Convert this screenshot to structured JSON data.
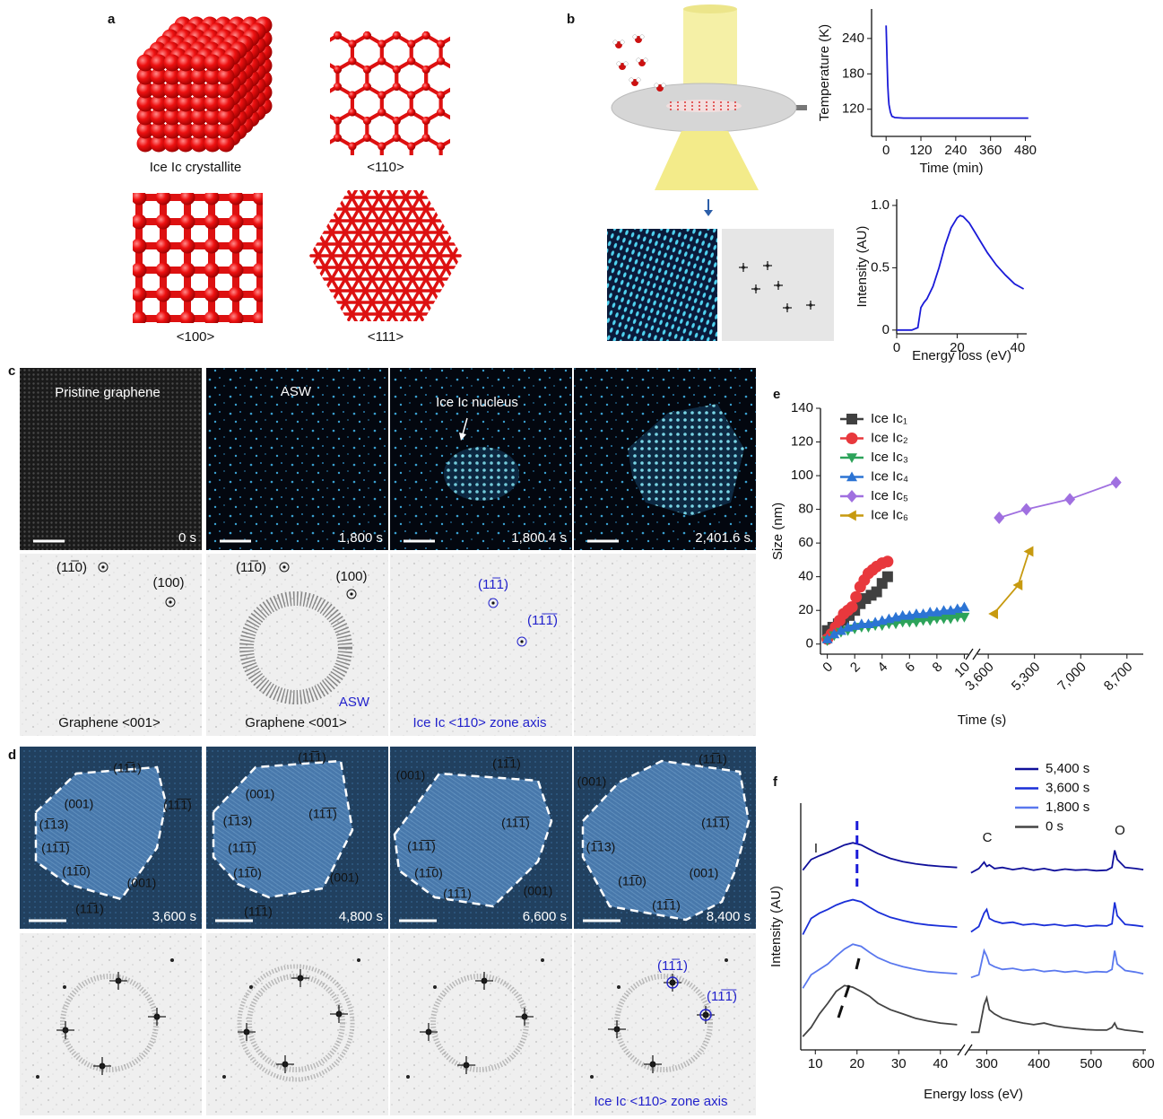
{
  "panels": {
    "a": {
      "label": "a",
      "captions": [
        "Ice Ic crystallite",
        "<110>",
        "<100>",
        "<111>"
      ]
    },
    "b": {
      "label": "b"
    },
    "c": {
      "label": "c",
      "top": [
        {
          "title": "Pristine graphene",
          "time": "0 s"
        },
        {
          "title": "ASW",
          "time": "1,800 s"
        },
        {
          "title": "Ice Ic nucleus",
          "time": "1,800.4 s"
        },
        {
          "time": "2,401.6 s"
        }
      ],
      "bottom": [
        {
          "labels": [
            "(11̅0)",
            "(100)"
          ],
          "caption": "Graphene <001>"
        },
        {
          "labels": [
            "(11̅0)",
            "(100)",
            "ASW"
          ],
          "caption": "Graphene <001>"
        },
        {
          "labels": [
            "(11̅1)",
            "(11̅1̅)"
          ],
          "caption": "Ice Ic <110> zone axis"
        }
      ]
    },
    "d": {
      "label": "d",
      "top": [
        {
          "labels": [
            "(11̅1)",
            "(001)",
            "(11̅1̅)",
            "(1̅13)",
            "(11̅1̅)",
            "(11̅0)",
            "(001)",
            "(11̅1)"
          ],
          "time": "3,600 s"
        },
        {
          "labels": [
            "(11̅1)",
            "(001)",
            "(11̅1̅)",
            "(1̅13)",
            "(11̅1̅)",
            "(11̅0)",
            "(001)",
            "(11̅1)"
          ],
          "time": "4,800 s"
        },
        {
          "labels": [
            "(001)",
            "(11̅1)",
            "(11̅1̅)",
            "(11̅1̅)",
            "(11̅0)",
            "(11̅1)",
            "(001)"
          ],
          "time": "6,600 s"
        },
        {
          "labels": [
            "(001)",
            "(11̅1)",
            "(11̅1̅)",
            "(1̅13)",
            "(11̅0)",
            "(001)",
            "(11̅1)"
          ],
          "time": "8,400 s"
        }
      ],
      "bottom_labels": [
        "(11̅1)",
        "(11̅1̅)"
      ],
      "bottom_caption": "Ice Ic <110> zone axis"
    },
    "e": {
      "label": "e"
    },
    "f": {
      "label": "f"
    }
  },
  "chart_data": [
    {
      "type": "line",
      "xlabel": "Time (min)",
      "ylabel": "Temperature (K)",
      "color": "#1a1ad8",
      "x": [
        0,
        2,
        4,
        6,
        8,
        10,
        15,
        20,
        30,
        60,
        120,
        240,
        360,
        480,
        490
      ],
      "values": [
        262,
        230,
        190,
        160,
        140,
        128,
        115,
        108,
        106,
        105,
        105,
        105,
        105,
        105,
        105
      ],
      "xlim": [
        -50,
        500
      ],
      "ylim": [
        74,
        290
      ],
      "xticks": [
        0,
        120,
        240,
        360,
        480
      ],
      "yticks": [
        120,
        180,
        240
      ]
    },
    {
      "type": "line",
      "xlabel": "Energy loss (eV)",
      "ylabel": "Intensity (AU)",
      "color": "#1a1ad8",
      "x": [
        0,
        5,
        7,
        8,
        9,
        10,
        12,
        14,
        16,
        18,
        20,
        21,
        22,
        24,
        26,
        28,
        30,
        33,
        36,
        39,
        42
      ],
      "values": [
        0,
        0,
        0.02,
        0.18,
        0.22,
        0.25,
        0.35,
        0.5,
        0.68,
        0.82,
        0.9,
        0.92,
        0.91,
        0.86,
        0.78,
        0.7,
        0.62,
        0.52,
        0.44,
        0.37,
        0.33
      ],
      "xlim": [
        0,
        43
      ],
      "ylim": [
        -0.03,
        1.05
      ],
      "xticks": [
        0,
        20,
        40
      ],
      "yticks": [
        0,
        0.5,
        {
          "value": 1,
          "label": "1.0"
        }
      ]
    },
    {
      "type": "line",
      "markers": true,
      "xlabel": "Time (s)",
      "ylabel": "Size (nm)",
      "legend": "top-left",
      "xlim": [
        [
          -0.5,
          10.3
        ],
        [
          3200,
          9300
        ]
      ],
      "ylim": [
        -6,
        140
      ],
      "xticks": [
        0,
        2,
        4,
        6,
        8,
        10,
        {
          "value": 3600,
          "label": "3,600"
        },
        {
          "value": 5300,
          "label": "5,300"
        },
        {
          "value": 7000,
          "label": "7,000"
        },
        {
          "value": 8700,
          "label": "8,700"
        }
      ],
      "yticks": [
        0,
        20,
        40,
        60,
        80,
        100,
        120,
        140
      ],
      "series": [
        {
          "name": "Ice Ic₁",
          "color": "#404040",
          "marker": "square",
          "x": [
            0,
            0.4,
            0.8,
            1.2,
            1.6,
            2,
            2.4,
            2.8,
            3.2,
            3.6,
            4,
            4.4
          ],
          "values": [
            8,
            10,
            12,
            14,
            17,
            20,
            24,
            27,
            29,
            31,
            36,
            40
          ]
        },
        {
          "name": "Ice Ic₂",
          "color": "#e8383d",
          "marker": "circle",
          "x": [
            0,
            0.3,
            0.6,
            0.9,
            1.2,
            1.5,
            1.8,
            2.1,
            2.4,
            2.7,
            3,
            3.3,
            3.6,
            4,
            4.4
          ],
          "values": [
            3,
            6,
            10,
            14,
            18,
            20,
            22,
            28,
            34,
            38,
            42,
            44,
            46,
            48,
            49
          ]
        },
        {
          "name": "Ice Ic₃",
          "color": "#2da35a",
          "marker": "triangle-down",
          "x": [
            0,
            0.5,
            1,
            1.5,
            2,
            2.5,
            3,
            3.5,
            4,
            4.5,
            5,
            5.5,
            6,
            6.5,
            7,
            7.5,
            8,
            8.5,
            9,
            9.5,
            10
          ],
          "values": [
            2,
            5,
            7,
            8,
            9,
            10,
            10,
            11,
            11,
            12,
            12,
            13,
            13,
            13,
            14,
            14,
            15,
            15,
            15,
            16,
            16
          ]
        },
        {
          "name": "Ice Ic₄",
          "color": "#2c74d4",
          "marker": "triangle-up",
          "x": [
            0,
            0.5,
            1,
            1.5,
            2,
            2.5,
            3,
            3.5,
            4,
            4.5,
            5,
            5.5,
            6,
            6.5,
            7,
            7.5,
            8,
            8.5,
            9,
            9.5,
            10
          ],
          "values": [
            3,
            6,
            8,
            10,
            11,
            12,
            12,
            13,
            14,
            15,
            16,
            17,
            17,
            18,
            18,
            19,
            19,
            20,
            20,
            21,
            22
          ]
        },
        {
          "name": "Ice Ic₅",
          "color": "#a070e0",
          "marker": "diamond",
          "x": [
            4000,
            5000,
            6600,
            8300
          ],
          "values": [
            75,
            80,
            86,
            96
          ]
        },
        {
          "name": "Ice Ic₆",
          "color": "#c79a10",
          "marker": "triangle-left",
          "x": [
            3800,
            4700,
            5100
          ],
          "values": [
            18,
            35,
            55
          ]
        }
      ]
    },
    {
      "type": "line",
      "xlabel": "Energy loss (eV)",
      "ylabel": "Intensity (AU)",
      "legend": "top-right",
      "annotations": [
        "I",
        "C",
        "O"
      ],
      "xlim": [
        [
          6.5,
          45
        ],
        [
          265,
          605
        ]
      ],
      "ylim": [
        0,
        4.6
      ],
      "xticks": [
        10,
        20,
        30,
        40,
        300,
        400,
        500,
        600
      ],
      "x": [
        7,
        9,
        11,
        13,
        15,
        17,
        19,
        21,
        23,
        25,
        28,
        31,
        34,
        37,
        40,
        44,
        270,
        285,
        295,
        300,
        305,
        315,
        330,
        350,
        370,
        390,
        410,
        430,
        450,
        470,
        490,
        510,
        530,
        540,
        545,
        550,
        565,
        585,
        600
      ],
      "series": [
        {
          "name": "5,400 s",
          "color": "#10109a",
          "values": [
            3.35,
            3.55,
            3.62,
            3.68,
            3.75,
            3.82,
            3.86,
            3.82,
            3.74,
            3.66,
            3.57,
            3.51,
            3.47,
            3.44,
            3.42,
            3.4,
            3.3,
            3.38,
            3.5,
            3.42,
            3.45,
            3.38,
            3.4,
            3.36,
            3.39,
            3.35,
            3.38,
            3.34,
            3.37,
            3.35,
            3.36,
            3.34,
            3.35,
            3.4,
            3.72,
            3.55,
            3.4,
            3.38,
            3.36
          ]
        },
        {
          "name": "3,600 s",
          "color": "#1a2fd8",
          "values": [
            2.15,
            2.45,
            2.55,
            2.62,
            2.7,
            2.76,
            2.8,
            2.76,
            2.66,
            2.57,
            2.47,
            2.41,
            2.36,
            2.33,
            2.31,
            2.29,
            2.2,
            2.3,
            2.55,
            2.62,
            2.45,
            2.4,
            2.36,
            2.38,
            2.33,
            2.35,
            2.32,
            2.34,
            2.31,
            2.33,
            2.3,
            2.32,
            2.31,
            2.35,
            2.75,
            2.5,
            2.34,
            2.32,
            2.3
          ]
        },
        {
          "name": "1,800 s",
          "color": "#5a78ee",
          "values": [
            1.15,
            1.4,
            1.5,
            1.6,
            1.75,
            1.88,
            1.97,
            1.93,
            1.82,
            1.72,
            1.62,
            1.55,
            1.5,
            1.46,
            1.44,
            1.42,
            1.35,
            1.4,
            1.85,
            1.75,
            1.6,
            1.55,
            1.5,
            1.52,
            1.48,
            1.5,
            1.46,
            1.48,
            1.45,
            1.47,
            1.44,
            1.46,
            1.45,
            1.5,
            1.85,
            1.6,
            1.48,
            1.45,
            1.42
          ]
        },
        {
          "name": "0 s",
          "color": "#444444",
          "values": [
            0.25,
            0.42,
            0.67,
            0.87,
            1.09,
            1.2,
            1.17,
            1.09,
            1.0,
            0.87,
            0.75,
            0.67,
            0.59,
            0.54,
            0.5,
            0.47,
            0.33,
            0.33,
            0.84,
            0.97,
            0.75,
            0.67,
            0.59,
            0.54,
            0.5,
            0.47,
            0.5,
            0.45,
            0.42,
            0.4,
            0.38,
            0.37,
            0.37,
            0.42,
            0.5,
            0.4,
            0.37,
            0.35,
            0.33
          ]
        }
      ]
    }
  ]
}
